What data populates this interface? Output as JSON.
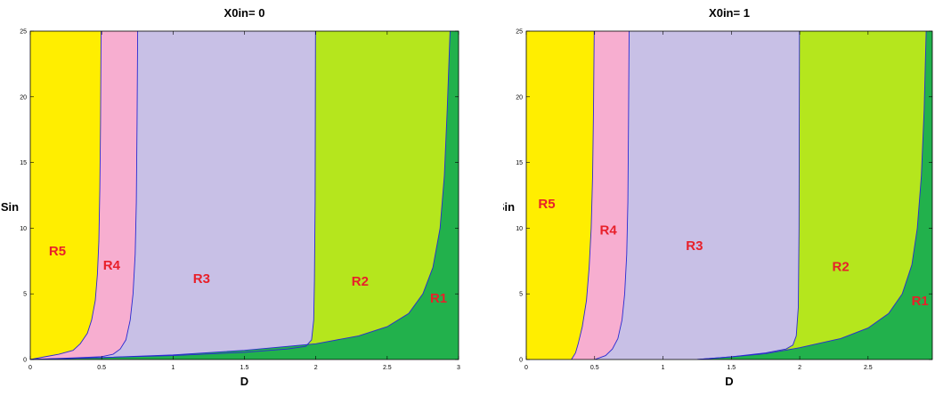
{
  "chart_data": [
    {
      "type": "area",
      "title": "X0in= 0",
      "xlabel": "D",
      "ylabel": "Sin",
      "xlim": [
        0,
        3
      ],
      "ylim": [
        0,
        25
      ],
      "xticks": [
        0,
        0.5,
        1,
        1.5,
        2,
        2.5,
        3
      ],
      "xtick_labels": [
        "0",
        "0.5",
        "1",
        "1.5",
        "2",
        "2.5",
        "3"
      ],
      "yticks": [
        0,
        5,
        10,
        15,
        20,
        25
      ],
      "ytick_labels": [
        "0",
        "5",
        "10",
        "15",
        "20",
        "25"
      ],
      "grid": false,
      "regions": [
        {
          "name": "R5",
          "color": "#ffee00",
          "label_at": [
            0.19,
            8.2
          ]
        },
        {
          "name": "R4",
          "color": "#f7aed0",
          "label_at": [
            0.57,
            7.1
          ]
        },
        {
          "name": "R3",
          "color": "#c8c0e6",
          "label_at": [
            1.2,
            6.1
          ]
        },
        {
          "name": "R2",
          "color": "#b5e61d",
          "label_at": [
            2.31,
            5.9
          ]
        },
        {
          "name": "R1",
          "color": "#22b14c",
          "label_at": [
            2.86,
            4.6
          ]
        }
      ],
      "boundaries": [
        {
          "name": "R5/R4",
          "points": [
            [
              0.0,
              0
            ],
            [
              0.1,
              0.2
            ],
            [
              0.2,
              0.4
            ],
            [
              0.3,
              0.7
            ],
            [
              0.35,
              1.2
            ],
            [
              0.4,
              2.0
            ],
            [
              0.43,
              3.0
            ],
            [
              0.455,
              4.5
            ],
            [
              0.47,
              6.5
            ],
            [
              0.48,
              9.0
            ],
            [
              0.487,
              13.0
            ],
            [
              0.492,
              18.0
            ],
            [
              0.496,
              25.0
            ]
          ]
        },
        {
          "name": "R4/R3",
          "points": [
            [
              0.0,
              0
            ],
            [
              0.3,
              0.12
            ],
            [
              0.5,
              0.22
            ],
            [
              0.58,
              0.4
            ],
            [
              0.63,
              0.8
            ],
            [
              0.67,
              1.5
            ],
            [
              0.7,
              3.0
            ],
            [
              0.72,
              5.0
            ],
            [
              0.735,
              8.0
            ],
            [
              0.743,
              12.0
            ],
            [
              0.748,
              18.0
            ],
            [
              0.752,
              25.0
            ]
          ]
        },
        {
          "name": "R3/R2",
          "points": [
            [
              0.0,
              0
            ],
            [
              0.5,
              0.15
            ],
            [
              1.0,
              0.3
            ],
            [
              1.5,
              0.55
            ],
            [
              1.8,
              0.8
            ],
            [
              1.93,
              1.0
            ],
            [
              1.97,
              1.5
            ],
            [
              1.985,
              3.0
            ],
            [
              1.99,
              6.0
            ],
            [
              1.995,
              12.0
            ],
            [
              1.998,
              25.0
            ]
          ]
        },
        {
          "name": "R2/R1",
          "points": [
            [
              0.0,
              0
            ],
            [
              0.5,
              0.15
            ],
            [
              1.0,
              0.35
            ],
            [
              1.5,
              0.7
            ],
            [
              2.0,
              1.2
            ],
            [
              2.3,
              1.8
            ],
            [
              2.5,
              2.5
            ],
            [
              2.65,
              3.5
            ],
            [
              2.75,
              5.0
            ],
            [
              2.82,
              7.0
            ],
            [
              2.87,
              10.0
            ],
            [
              2.9,
              14.0
            ],
            [
              2.92,
              19.0
            ],
            [
              2.94,
              25.0
            ]
          ]
        }
      ]
    },
    {
      "type": "area",
      "title": "X0in= 1",
      "xlabel": "D",
      "ylabel": "Sin",
      "xlim": [
        0,
        2.97
      ],
      "ylim": [
        0,
        25
      ],
      "xticks": [
        0,
        0.5,
        1,
        1.5,
        2,
        2.5
      ],
      "xtick_labels": [
        "0",
        "0.5",
        "1",
        "1.5",
        "2",
        "2.5"
      ],
      "yticks": [
        0,
        5,
        10,
        15,
        20,
        25
      ],
      "ytick_labels": [
        "0",
        "5",
        "10",
        "15",
        "20",
        "25"
      ],
      "grid": false,
      "regions": [
        {
          "name": "R5",
          "color": "#ffee00",
          "label_at": [
            0.15,
            11.8
          ]
        },
        {
          "name": "R4",
          "color": "#f7aed0",
          "label_at": [
            0.6,
            9.8
          ]
        },
        {
          "name": "R3",
          "color": "#c8c0e6",
          "label_at": [
            1.23,
            8.6
          ]
        },
        {
          "name": "R2",
          "color": "#b5e61d",
          "label_at": [
            2.3,
            7.0
          ]
        },
        {
          "name": "R1",
          "color": "#22b14c",
          "label_at": [
            2.88,
            4.4
          ]
        }
      ],
      "boundaries": [
        {
          "name": "R5/R4",
          "points": [
            [
              0.33,
              0
            ],
            [
              0.36,
              0.5
            ],
            [
              0.38,
              1.2
            ],
            [
              0.41,
              2.5
            ],
            [
              0.44,
              4.5
            ],
            [
              0.46,
              7.0
            ],
            [
              0.475,
              10.0
            ],
            [
              0.485,
              14.0
            ],
            [
              0.492,
              19.0
            ],
            [
              0.497,
              25.0
            ]
          ]
        },
        {
          "name": "R4/R3",
          "points": [
            [
              0.5,
              0
            ],
            [
              0.58,
              0.3
            ],
            [
              0.63,
              0.8
            ],
            [
              0.67,
              1.6
            ],
            [
              0.7,
              3.0
            ],
            [
              0.72,
              5.0
            ],
            [
              0.735,
              8.0
            ],
            [
              0.743,
              12.0
            ],
            [
              0.748,
              18.0
            ],
            [
              0.752,
              25.0
            ]
          ]
        },
        {
          "name": "R3/R2",
          "points": [
            [
              1.25,
              0
            ],
            [
              1.5,
              0.2
            ],
            [
              1.75,
              0.5
            ],
            [
              1.9,
              0.8
            ],
            [
              1.95,
              1.1
            ],
            [
              1.975,
              1.8
            ],
            [
              1.99,
              4.0
            ],
            [
              1.995,
              10.0
            ],
            [
              1.998,
              25.0
            ]
          ]
        },
        {
          "name": "R2/R1",
          "points": [
            [
              1.25,
              0
            ],
            [
              1.5,
              0.2
            ],
            [
              1.75,
              0.45
            ],
            [
              2.0,
              0.9
            ],
            [
              2.3,
              1.6
            ],
            [
              2.5,
              2.4
            ],
            [
              2.65,
              3.5
            ],
            [
              2.75,
              5.0
            ],
            [
              2.82,
              7.2
            ],
            [
              2.86,
              10.0
            ],
            [
              2.89,
              14.0
            ],
            [
              2.91,
              19.0
            ],
            [
              2.925,
              25.0
            ]
          ]
        }
      ]
    }
  ]
}
